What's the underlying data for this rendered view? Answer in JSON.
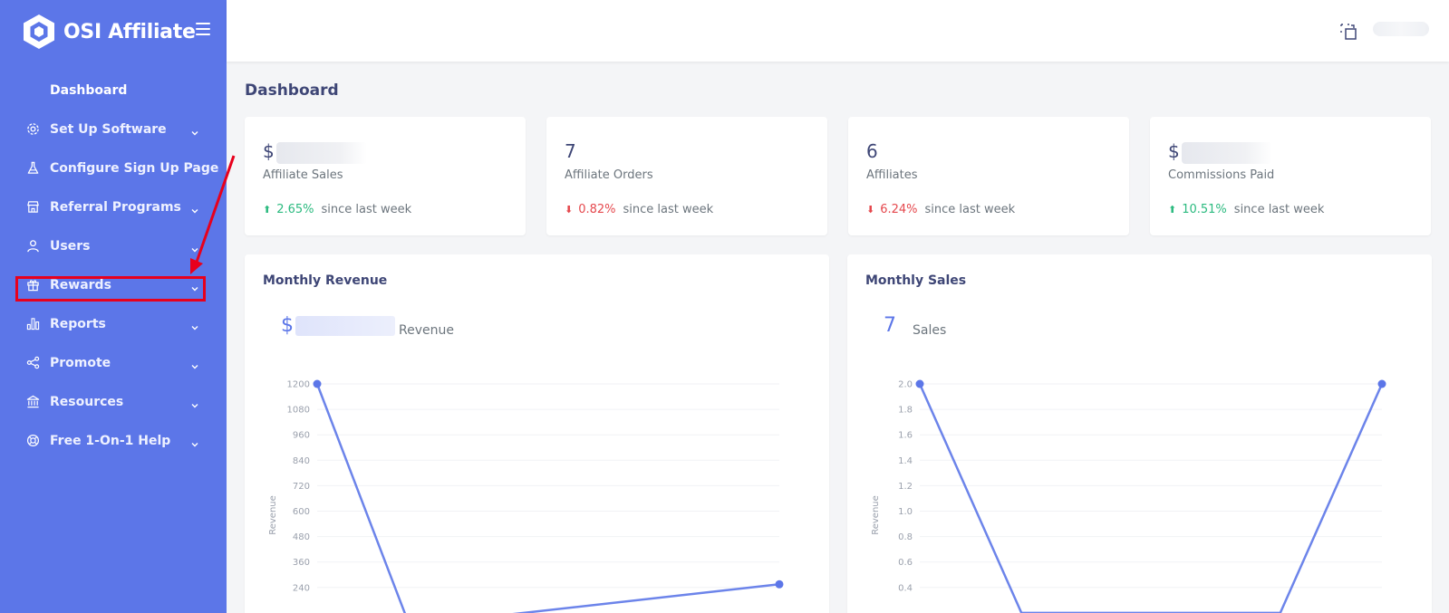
{
  "app": {
    "name": "OSI Affiliate"
  },
  "sidebar": {
    "items": [
      {
        "label": "Dashboard",
        "icon": "none",
        "has_chevron": false
      },
      {
        "label": "Set Up Software",
        "icon": "gear-icon",
        "has_chevron": true
      },
      {
        "label": "Configure Sign Up Page",
        "icon": "flask-icon",
        "has_chevron": false
      },
      {
        "label": "Referral Programs",
        "icon": "store-icon",
        "has_chevron": true
      },
      {
        "label": "Users",
        "icon": "user-icon",
        "has_chevron": true
      },
      {
        "label": "Rewards",
        "icon": "gift-icon",
        "has_chevron": true
      },
      {
        "label": "Reports",
        "icon": "bar-chart-icon",
        "has_chevron": true
      },
      {
        "label": "Promote",
        "icon": "share-icon",
        "has_chevron": true
      },
      {
        "label": "Resources",
        "icon": "bank-icon",
        "has_chevron": true
      },
      {
        "label": "Free 1-On-1 Help",
        "icon": "lifebuoy-icon",
        "has_chevron": true
      }
    ]
  },
  "topbar": {
    "icon": "crop-icon"
  },
  "page": {
    "title": "Dashboard"
  },
  "stats": [
    {
      "value": "$",
      "label": "Affiliate Sales",
      "trend": "up",
      "pct": "2.65%",
      "since": "since last week"
    },
    {
      "value": "7",
      "label": "Affiliate Orders",
      "trend": "down",
      "pct": "0.82%",
      "since": "since last week"
    },
    {
      "value": "6",
      "label": "Affiliates",
      "trend": "down",
      "pct": "6.24%",
      "since": "since last week"
    },
    {
      "value": "$",
      "label": "Commissions Paid",
      "trend": "up",
      "pct": "10.51%",
      "since": "since last week"
    }
  ],
  "colors": {
    "sidebar": "#5c76e8",
    "accent": "#5c76e8",
    "up": "#2bba7f",
    "down": "#e5484d"
  },
  "charts": {
    "revenue": {
      "title": "Monthly Revenue",
      "head_value": "$",
      "head_label": "Revenue"
    },
    "sales": {
      "title": "Monthly Sales",
      "head_value": "7",
      "head_label": "Sales"
    }
  },
  "chart_data": [
    {
      "type": "line",
      "title": "Monthly Revenue",
      "ylabel": "Revenue",
      "yticks": [
        "1200",
        "1080",
        "960",
        "840",
        "720",
        "600",
        "480",
        "360",
        "240"
      ],
      "ylim": [
        240,
        1200
      ],
      "series": [
        {
          "points": [
            {
              "x": 0,
              "y": 1200
            },
            {
              "x": 0.2,
              "y": 60
            },
            {
              "x": 1,
              "y": 255
            }
          ]
        }
      ]
    },
    {
      "type": "line",
      "title": "Monthly Sales",
      "ylabel": "Revenue",
      "yticks": [
        "2.0",
        "1.8",
        "1.6",
        "1.4",
        "1.2",
        "1.0",
        "0.8",
        "0.6",
        "0.4"
      ],
      "ylim": [
        0.4,
        2.0
      ],
      "series": [
        {
          "points": [
            {
              "x": 0,
              "y": 2.0
            },
            {
              "x": 0.22,
              "y": 0.2
            },
            {
              "x": 0.78,
              "y": 0.2
            },
            {
              "x": 1,
              "y": 2.0
            }
          ]
        }
      ]
    }
  ]
}
